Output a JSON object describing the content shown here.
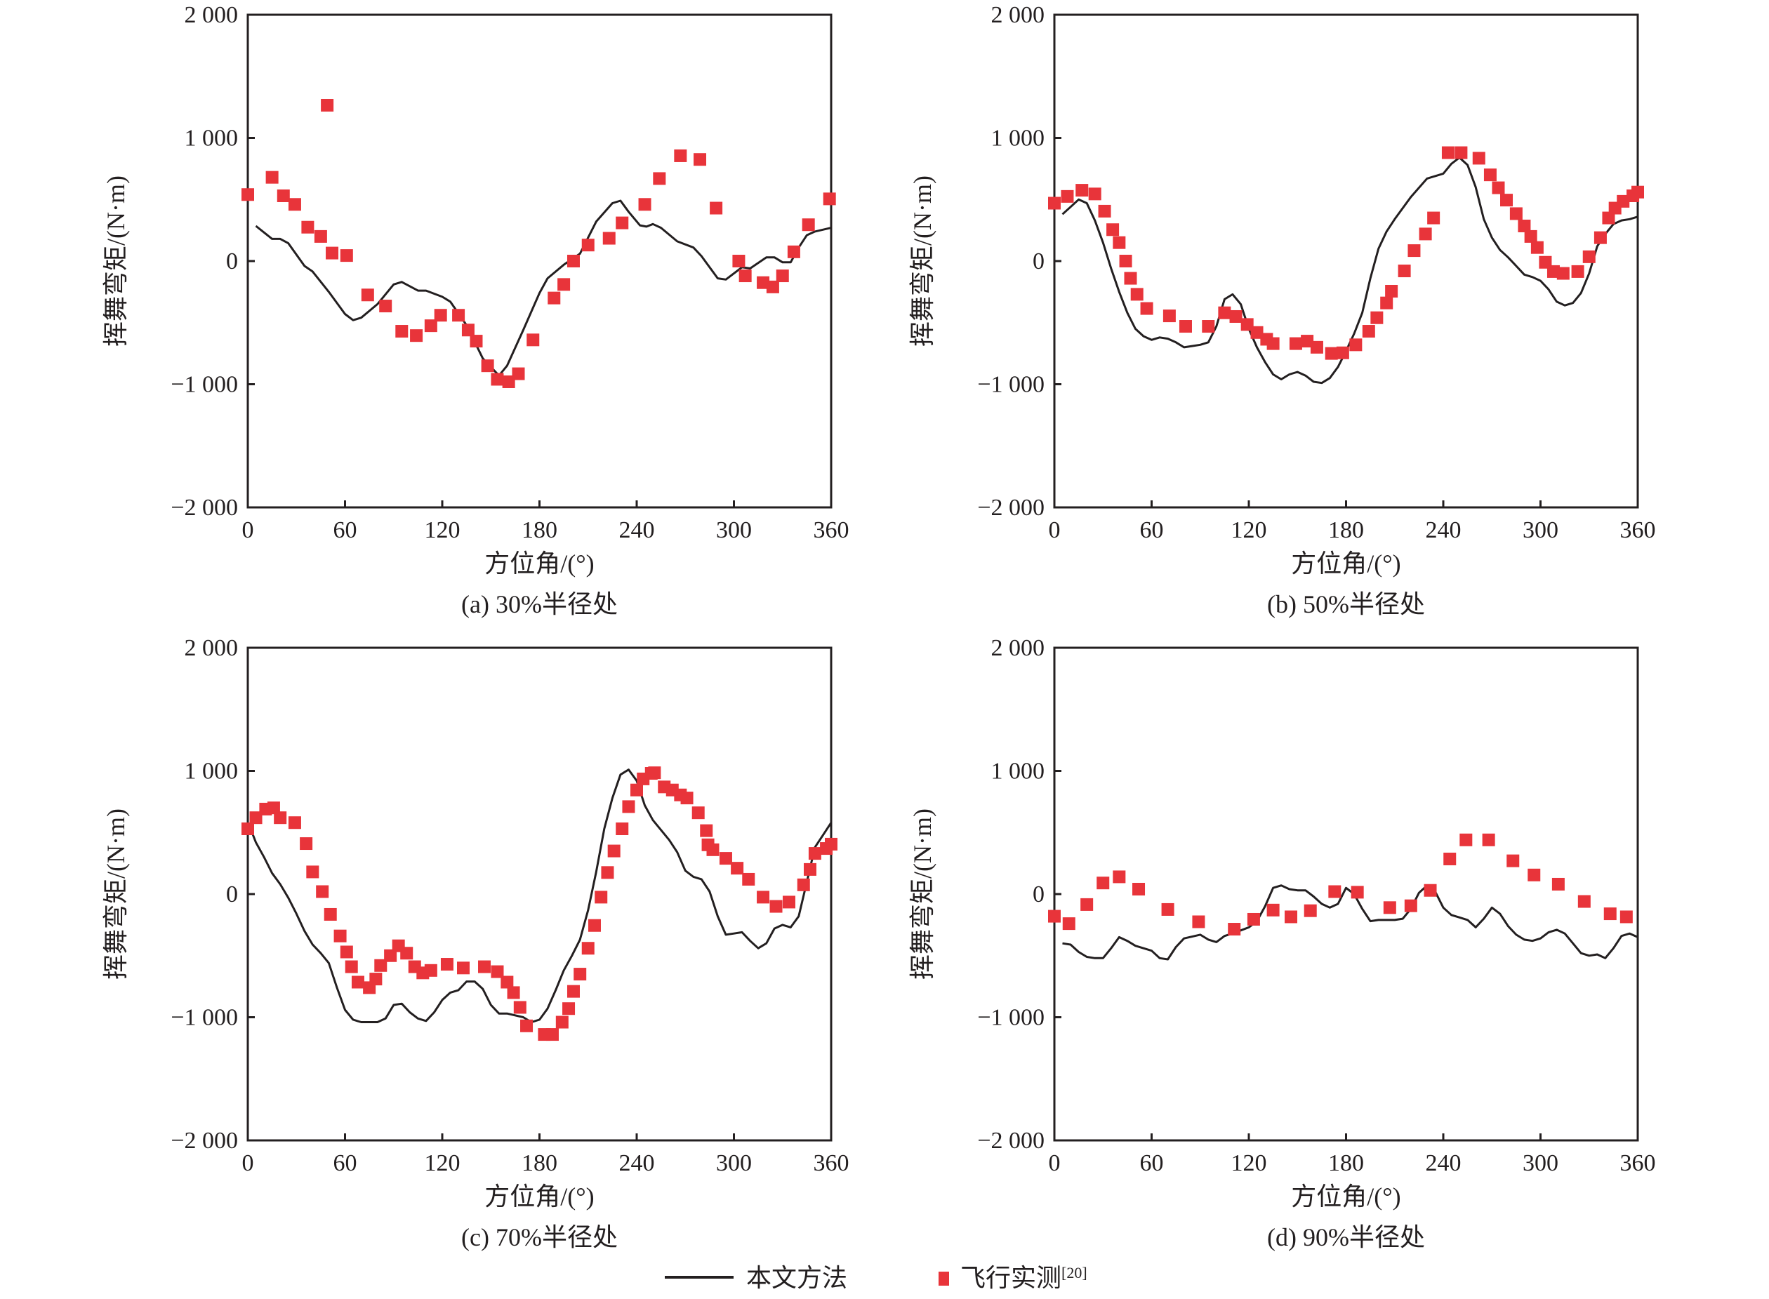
{
  "figure": {
    "legend": {
      "line_label": "本文方法",
      "marker_label": "飞行实测",
      "marker_ref": "[20]"
    },
    "colors": {
      "line": "#231f20",
      "marker": "#e8343a",
      "axis": "#231f20"
    }
  },
  "chart_data": [
    {
      "type": "line+scatter",
      "caption": "(a) 30%半径处",
      "xlabel": "方位角/(°)",
      "ylabel": "挥舞弯矩/(N·m)",
      "xlim": [
        0,
        360
      ],
      "ylim": [
        -2000,
        2000
      ],
      "xticks": [
        0,
        60,
        120,
        180,
        240,
        300,
        360
      ],
      "yticks": [
        -2000,
        -1000,
        0,
        1000,
        2000
      ],
      "xtick_labels": [
        "0",
        "60",
        "120",
        "180",
        "240",
        "300",
        "360"
      ],
      "ytick_labels": [
        "−2 000",
        "−1 000",
        "0",
        "1 000",
        "2 000"
      ],
      "grid": false,
      "series": [
        {
          "name": "本文方法",
          "kind": "line",
          "x": [
            5,
            15,
            20,
            25,
            35,
            40,
            50,
            60,
            65,
            70,
            80,
            90,
            95,
            105,
            110,
            120,
            125,
            135,
            145,
            155,
            160,
            170,
            180,
            185,
            195,
            205,
            215,
            225,
            230,
            235,
            242,
            246,
            250,
            255,
            265,
            275,
            280,
            290,
            295,
            300,
            305,
            310,
            320,
            325,
            330,
            335,
            340,
            345,
            350,
            360
          ],
          "y": [
            285,
            180,
            180,
            145,
            -40,
            -85,
            -250,
            -430,
            -480,
            -460,
            -350,
            -190,
            -170,
            -240,
            -240,
            -290,
            -330,
            -520,
            -790,
            -930,
            -850,
            -560,
            -260,
            -140,
            -30,
            60,
            320,
            470,
            490,
            400,
            290,
            280,
            300,
            270,
            160,
            110,
            40,
            -140,
            -150,
            -100,
            -50,
            -60,
            30,
            30,
            -10,
            -10,
            110,
            210,
            240,
            270
          ]
        },
        {
          "name": "飞行实测",
          "kind": "scatter",
          "x": [
            0,
            15,
            22,
            29,
            37,
            45,
            49,
            52,
            61,
            74,
            85,
            95,
            104,
            113,
            119,
            130,
            136,
            141,
            148,
            154,
            161,
            167,
            176,
            189,
            195,
            201,
            210,
            223,
            231,
            245,
            254,
            267,
            279,
            289,
            303,
            307,
            318,
            324,
            330,
            337,
            346,
            359
          ],
          "y": [
            540,
            680,
            530,
            460,
            275,
            200,
            1265,
            65,
            45,
            -275,
            -365,
            -570,
            -605,
            -525,
            -440,
            -440,
            -560,
            -650,
            -850,
            -960,
            -980,
            -915,
            -640,
            -300,
            -190,
            0,
            130,
            185,
            310,
            460,
            670,
            855,
            825,
            430,
            0,
            -120,
            -175,
            -210,
            -120,
            75,
            295,
            505
          ]
        }
      ]
    },
    {
      "type": "line+scatter",
      "caption": "(b) 50%半径处",
      "xlabel": "方位角/(°)",
      "ylabel": "挥舞弯矩/(N·m)",
      "xlim": [
        0,
        360
      ],
      "ylim": [
        -2000,
        2000
      ],
      "xticks": [
        0,
        60,
        120,
        180,
        240,
        300,
        360
      ],
      "yticks": [
        -2000,
        -1000,
        0,
        1000,
        2000
      ],
      "xtick_labels": [
        "0",
        "60",
        "120",
        "180",
        "240",
        "300",
        "360"
      ],
      "ytick_labels": [
        "−2 000",
        "−1 000",
        "0",
        "1 000",
        "2 000"
      ],
      "grid": false,
      "series": [
        {
          "name": "本文方法",
          "kind": "line",
          "x": [
            5,
            10,
            15,
            20,
            25,
            30,
            35,
            40,
            45,
            50,
            55,
            60,
            65,
            70,
            75,
            80,
            85,
            90,
            95,
            100,
            105,
            110,
            115,
            120,
            125,
            130,
            135,
            140,
            145,
            150,
            155,
            160,
            165,
            170,
            175,
            180,
            185,
            190,
            195,
            200,
            205,
            210,
            215,
            220,
            230,
            240,
            245,
            250,
            255,
            260,
            265,
            270,
            275,
            280,
            285,
            290,
            295,
            300,
            305,
            310,
            315,
            320,
            325,
            330,
            335,
            340,
            345,
            350,
            355,
            360
          ],
          "y": [
            380,
            440,
            500,
            470,
            330,
            150,
            -60,
            -250,
            -420,
            -550,
            -610,
            -640,
            -620,
            -630,
            -660,
            -700,
            -690,
            -680,
            -660,
            -530,
            -310,
            -270,
            -350,
            -550,
            -700,
            -820,
            -920,
            -960,
            -920,
            -900,
            -930,
            -980,
            -990,
            -950,
            -860,
            -730,
            -590,
            -420,
            -140,
            100,
            240,
            340,
            430,
            520,
            670,
            710,
            790,
            840,
            780,
            600,
            340,
            190,
            90,
            30,
            -40,
            -110,
            -130,
            -160,
            -230,
            -330,
            -360,
            -340,
            -260,
            -100,
            120,
            220,
            300,
            330,
            340,
            360
          ]
        },
        {
          "name": "飞行实测",
          "kind": "scatter",
          "x": [
            0,
            8,
            17,
            25,
            31,
            36,
            40,
            44,
            47,
            51,
            57,
            71,
            81,
            95,
            105,
            112,
            119,
            125,
            131,
            135,
            149,
            156,
            162,
            171,
            178,
            186,
            194,
            199,
            205,
            208,
            216,
            222,
            229,
            234,
            243,
            251,
            262,
            269,
            274,
            279,
            285,
            290,
            294,
            298,
            303,
            308,
            314,
            323,
            330,
            337,
            342,
            346,
            351,
            357,
            360
          ],
          "y": [
            470,
            525,
            575,
            545,
            405,
            255,
            150,
            0,
            -140,
            -270,
            -385,
            -445,
            -530,
            -530,
            -420,
            -450,
            -515,
            -580,
            -635,
            -670,
            -670,
            -650,
            -700,
            -750,
            -745,
            -680,
            -570,
            -460,
            -340,
            -245,
            -80,
            85,
            220,
            350,
            880,
            880,
            835,
            700,
            595,
            495,
            385,
            285,
            200,
            110,
            -10,
            -85,
            -100,
            -85,
            35,
            190,
            350,
            430,
            485,
            530,
            560
          ]
        }
      ]
    },
    {
      "type": "line+scatter",
      "caption": "(c) 70%半径处",
      "xlabel": "方位角/(°)",
      "ylabel": "挥舞弯矩/(N·m)",
      "xlim": [
        0,
        360
      ],
      "ylim": [
        -2000,
        2000
      ],
      "xticks": [
        0,
        60,
        120,
        180,
        240,
        300,
        360
      ],
      "yticks": [
        -2000,
        -1000,
        0,
        1000,
        2000
      ],
      "xtick_labels": [
        "0",
        "60",
        "120",
        "180",
        "240",
        "300",
        "360"
      ],
      "ytick_labels": [
        "−2 000",
        "−1 000",
        "0",
        "1 000",
        "2 000"
      ],
      "grid": false,
      "series": [
        {
          "name": "本文方法",
          "kind": "line",
          "x": [
            2,
            5,
            10,
            15,
            20,
            25,
            30,
            35,
            40,
            45,
            50,
            55,
            60,
            65,
            70,
            80,
            85,
            90,
            95,
            100,
            105,
            110,
            115,
            120,
            125,
            130,
            135,
            140,
            145,
            150,
            155,
            160,
            170,
            175,
            180,
            185,
            190,
            195,
            200,
            205,
            210,
            215,
            220,
            225,
            230,
            235,
            240,
            245,
            250,
            255,
            260,
            265,
            270,
            275,
            280,
            285,
            290,
            295,
            300,
            305,
            310,
            315,
            320,
            325,
            330,
            335,
            340,
            345,
            350,
            355,
            360
          ],
          "y": [
            520,
            420,
            300,
            170,
            80,
            -30,
            -160,
            -300,
            -410,
            -480,
            -560,
            -760,
            -940,
            -1020,
            -1040,
            -1040,
            -1010,
            -900,
            -890,
            -960,
            -1010,
            -1030,
            -960,
            -860,
            -800,
            -780,
            -710,
            -710,
            -770,
            -900,
            -970,
            -970,
            -1000,
            -1040,
            -1020,
            -930,
            -780,
            -620,
            -500,
            -370,
            -130,
            180,
            530,
            780,
            970,
            1010,
            920,
            720,
            600,
            520,
            440,
            340,
            190,
            140,
            120,
            20,
            -180,
            -330,
            -320,
            -310,
            -380,
            -440,
            -400,
            -280,
            -250,
            -270,
            -180,
            100,
            380,
            480,
            580
          ]
        },
        {
          "name": "飞行实测",
          "kind": "scatter",
          "x": [
            0,
            5,
            11,
            16,
            20,
            29,
            36,
            40,
            46,
            51,
            57,
            61,
            64,
            68,
            75,
            79,
            82,
            88,
            93,
            98,
            103,
            108,
            113,
            123,
            133,
            146,
            154,
            160,
            164,
            168,
            172,
            183,
            188,
            194,
            198,
            201,
            205,
            210,
            214,
            218,
            222,
            226,
            231,
            235,
            240,
            244,
            249,
            251,
            257,
            262,
            267,
            271,
            278,
            283,
            284,
            287,
            295,
            302,
            309,
            318,
            326,
            334,
            343,
            347,
            350,
            357,
            360
          ],
          "y": [
            530,
            620,
            690,
            700,
            620,
            580,
            410,
            180,
            20,
            -165,
            -340,
            -470,
            -590,
            -715,
            -760,
            -690,
            -580,
            -500,
            -420,
            -480,
            -590,
            -640,
            -620,
            -570,
            -600,
            -590,
            -630,
            -715,
            -800,
            -920,
            -1070,
            -1140,
            -1140,
            -1040,
            -930,
            -790,
            -650,
            -440,
            -255,
            -25,
            175,
            350,
            530,
            710,
            845,
            935,
            980,
            985,
            870,
            845,
            805,
            780,
            660,
            515,
            400,
            360,
            290,
            210,
            120,
            -25,
            -100,
            -65,
            75,
            200,
            330,
            370,
            405
          ]
        }
      ]
    },
    {
      "type": "line+scatter",
      "caption": "(d) 90%半径处",
      "xlabel": "方位角/(°)",
      "ylabel": "挥舞弯矩/(N·m)",
      "xlim": [
        0,
        360
      ],
      "ylim": [
        -2000,
        2000
      ],
      "xticks": [
        0,
        60,
        120,
        180,
        240,
        300,
        360
      ],
      "yticks": [
        -2000,
        -1000,
        0,
        1000,
        2000
      ],
      "xtick_labels": [
        "0",
        "60",
        "120",
        "180",
        "240",
        "300",
        "360"
      ],
      "ytick_labels": [
        "−2 000",
        "−1 000",
        "0",
        "1 000",
        "2 000"
      ],
      "grid": false,
      "series": [
        {
          "name": "本文方法",
          "kind": "line",
          "x": [
            5,
            10,
            15,
            20,
            25,
            30,
            35,
            40,
            45,
            50,
            55,
            60,
            65,
            70,
            75,
            80,
            90,
            95,
            100,
            105,
            110,
            120,
            125,
            130,
            135,
            140,
            145,
            150,
            155,
            160,
            165,
            170,
            175,
            180,
            185,
            190,
            195,
            200,
            210,
            215,
            220,
            225,
            230,
            235,
            240,
            245,
            250,
            255,
            260,
            265,
            270,
            275,
            280,
            285,
            290,
            295,
            300,
            305,
            310,
            315,
            320,
            325,
            330,
            335,
            340,
            345,
            350,
            355,
            360
          ],
          "y": [
            -400,
            -410,
            -470,
            -510,
            -520,
            -520,
            -440,
            -350,
            -380,
            -420,
            -440,
            -460,
            -520,
            -530,
            -430,
            -360,
            -330,
            -370,
            -390,
            -340,
            -320,
            -270,
            -220,
            -100,
            50,
            70,
            40,
            30,
            30,
            -20,
            -80,
            -110,
            -80,
            50,
            0,
            -120,
            -220,
            -210,
            -210,
            -200,
            -120,
            10,
            70,
            20,
            -110,
            -170,
            -190,
            -210,
            -270,
            -200,
            -110,
            -160,
            -260,
            -330,
            -370,
            -380,
            -360,
            -310,
            -290,
            -320,
            -400,
            -480,
            -500,
            -490,
            -520,
            -440,
            -340,
            -320,
            -350
          ]
        },
        {
          "name": "飞行实测",
          "kind": "scatter",
          "x": [
            0,
            9,
            20,
            30,
            40,
            52,
            70,
            89,
            111,
            123,
            135,
            146,
            158,
            173,
            187,
            207,
            220,
            232,
            244,
            254,
            268,
            283,
            296,
            311,
            327,
            343,
            353
          ],
          "y": [
            -180,
            -240,
            -85,
            90,
            140,
            40,
            -125,
            -225,
            -285,
            -205,
            -130,
            -185,
            -135,
            20,
            15,
            -110,
            -95,
            30,
            285,
            440,
            440,
            270,
            155,
            80,
            -60,
            -160,
            -185
          ]
        }
      ]
    }
  ]
}
